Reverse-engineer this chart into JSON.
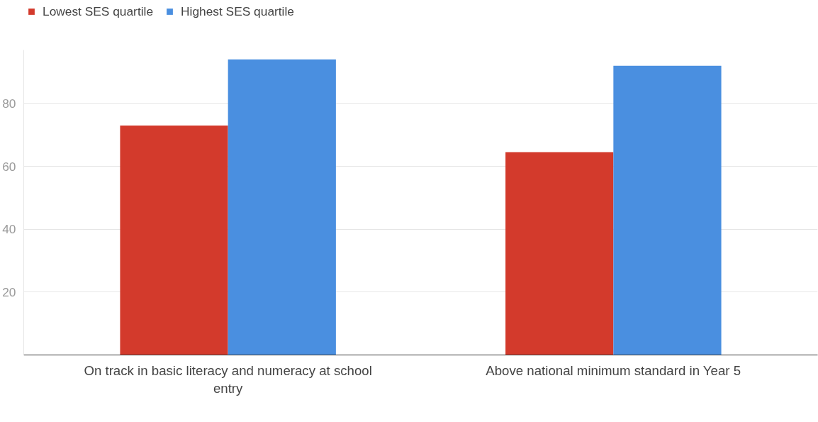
{
  "chart_data": {
    "type": "bar",
    "categories": [
      "On track in basic literacy and numeracy at school entry",
      "Above national minimum standard in Year 5"
    ],
    "series": [
      {
        "name": "Lowest SES quartile",
        "color": "#d33a2c",
        "values": [
          73,
          64.5
        ]
      },
      {
        "name": "Highest SES quartile",
        "color": "#4a8fe0",
        "values": [
          94,
          92
        ]
      }
    ],
    "ylim": [
      0,
      97
    ],
    "yticks": [
      20,
      40,
      60,
      80
    ],
    "grid": "y",
    "legend": "top left"
  }
}
